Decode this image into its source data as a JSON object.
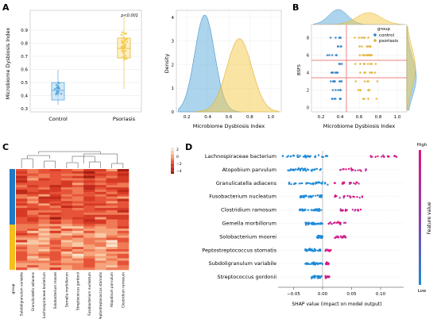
{
  "panel_labels": {
    "A": "A",
    "B": "B",
    "C": "C",
    "D": "D"
  },
  "colors": {
    "blue": "#5aa9dc",
    "yellow": "#f3c94a",
    "red_line": "#f08080",
    "shap_low": "#1f8bd8",
    "shap_high": "#e0157d"
  },
  "panelA": {
    "ylabel": "Microbiome Dysbiosis Index",
    "pvalue": "p<0.001",
    "yticks": [
      "0.3",
      "0.4",
      "0.5",
      "0.6",
      "0.7",
      "0.8",
      "0.9"
    ],
    "xticks": [
      "Control",
      "Psoriasis"
    ]
  },
  "panelA2": {
    "xlabel": "Microbiome Dysbiosis Index",
    "ylabel": "Density",
    "xticks": [
      "0.2",
      "0.4",
      "0.6",
      "0.8",
      "1.0"
    ],
    "yticks": [
      "0",
      "1",
      "2",
      "3",
      "4"
    ]
  },
  "panelB": {
    "xlabel": "Microbiome Dysbiosis Index",
    "ylabel": "BSFS",
    "xticks": [
      "0.2",
      "0.4",
      "0.6",
      "0.8",
      "1.0"
    ],
    "yticks": [
      "0",
      "2",
      "4",
      "6",
      "8"
    ],
    "legend_title": "group",
    "legend": [
      "control",
      "psoriasis"
    ]
  },
  "panelC": {
    "colorbar": [
      "2",
      "0",
      "−2",
      "−4"
    ],
    "row_label": "group",
    "columns": [
      "Subdoligranulum variabile",
      "Granulicatella adiacens",
      "Lachnospiraceae bacterium",
      "Solobacterium moorei",
      "Gemella morbillorum",
      "Streptococcus gordonii",
      "Fusobacterium nucleatum",
      "Peptostreptococcus stomatis",
      "Atopobium parvulum",
      "Clostridium ramosum"
    ]
  },
  "panelD": {
    "features": [
      "Lachnospiraceae bacterium",
      "Atopobium parvulum",
      "Granulicatella adiacens",
      "Fusobacterium nucleatum",
      "Clostridium ramosum",
      "Gemella morbillorum",
      "Solobacterium moorei",
      "Peptostreptococcus stomatis",
      "Subdoligranulum variabile",
      "Streptococcus gordonii"
    ],
    "xticks": [
      "−0.05",
      "0.00",
      "0.05",
      "0.10"
    ],
    "xlabel": "SHAP value (impact on model output)",
    "cb_high": "High",
    "cb_low": "Low",
    "cb_title": "Feature value"
  }
}
